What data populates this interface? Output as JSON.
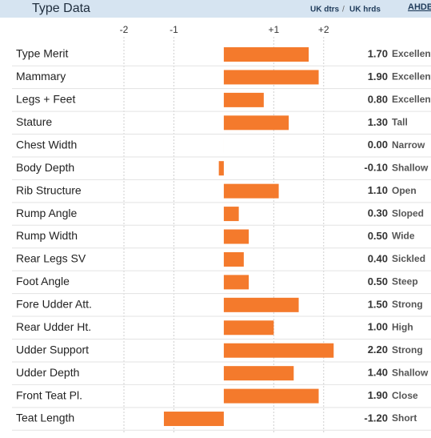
{
  "chart_data": {
    "type": "bar",
    "title": "Type Data",
    "header_links": [
      "UK dtrs",
      "UK hrds"
    ],
    "separator": "/",
    "logo": "AHDB",
    "categories": [
      "Type Merit",
      "Mammary",
      "Legs + Feet",
      "Stature",
      "Chest Width",
      "Body Depth",
      "Rib Structure",
      "Rump Angle",
      "Rump Width",
      "Rear Legs SV",
      "Foot Angle",
      "Fore Udder Att.",
      "Rear Udder Ht.",
      "Udder Support",
      "Udder Depth",
      "Front Teat Pl.",
      "Teat Length"
    ],
    "values": [
      1.7,
      1.9,
      0.8,
      1.3,
      0,
      -0.1,
      1.1,
      0.3,
      0.5,
      0.4,
      0.5,
      1.5,
      1.0,
      2.2,
      1.4,
      1.9,
      -1.2
    ],
    "value_labels": [
      "1.70",
      "1.90",
      "0.80",
      "1.30",
      "0.00",
      "-0.10",
      "1.10",
      "0.30",
      "0.50",
      "0.40",
      "0.50",
      "1.50",
      "1.00",
      "2.20",
      "1.40",
      "1.90",
      "-1.20"
    ],
    "descriptors": [
      "Excellent",
      "Excellent",
      "Excellent",
      "Tall",
      "Narrow",
      "Shallow",
      "Open",
      "Sloped",
      "Wide",
      "Sickled",
      "Steep",
      "Strong",
      "High",
      "Strong",
      "Shallow",
      "Close",
      "Short"
    ],
    "color": "#f47a2c",
    "xlim": [
      -2,
      2.5
    ],
    "xticks": [
      -2,
      -1,
      {
        "value": 1,
        "label": "+1"
      },
      {
        "value": 2,
        "label": "+2"
      }
    ],
    "grid": true
  }
}
